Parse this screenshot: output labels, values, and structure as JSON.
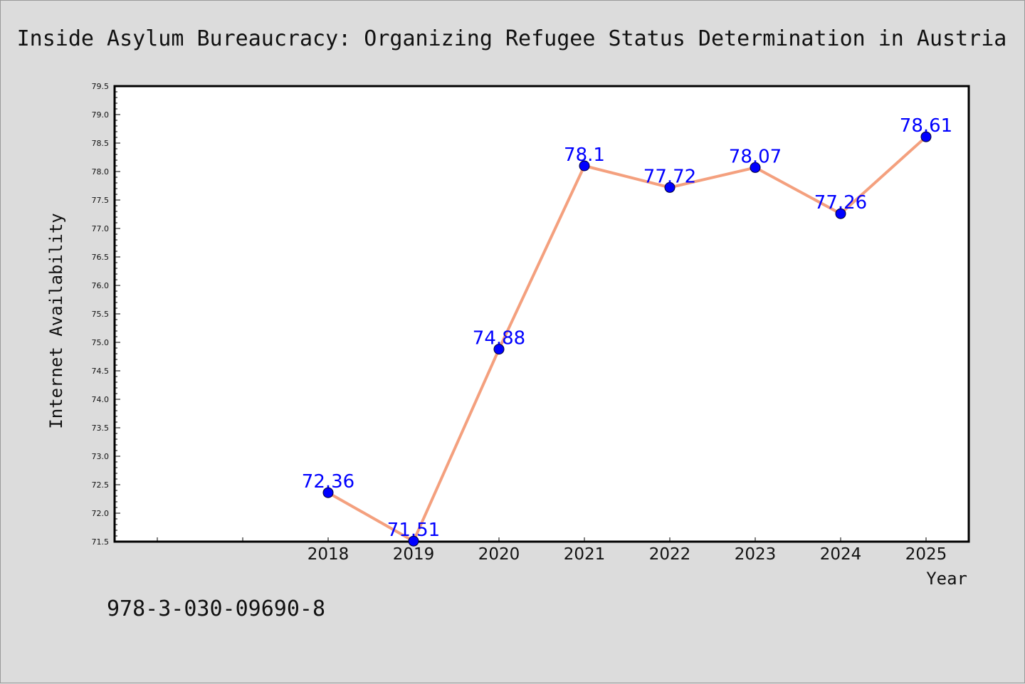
{
  "chart_data": {
    "type": "line",
    "title": "Inside Asylum Bureaucracy: Organizing Refugee Status Determination in Austria",
    "xlabel": "Year",
    "ylabel": "Internet Availability",
    "x": [
      2018,
      2019,
      2020,
      2021,
      2022,
      2023,
      2024,
      2025
    ],
    "categories": [
      "2018",
      "2019",
      "2020",
      "2021",
      "2022",
      "2023",
      "2024",
      "2025"
    ],
    "values": [
      72.36,
      71.51,
      74.88,
      78.1,
      77.72,
      78.07,
      77.26,
      78.61
    ],
    "value_labels": [
      "72.36",
      "71.51",
      "74.88",
      "78.1",
      "77.72",
      "78.07",
      "77.26",
      "78.61"
    ],
    "ylim": [
      71.5,
      79.5
    ],
    "xlim": [
      2015.5,
      2025.5
    ],
    "yticks": [
      "71.5",
      "72.0",
      "72.5",
      "73.0",
      "73.5",
      "74.0",
      "74.5",
      "75.0",
      "75.5",
      "76.0",
      "76.5",
      "77.0",
      "77.5",
      "78.0",
      "78.5",
      "79.0",
      "79.5"
    ],
    "grid": false,
    "line_color": "#f4a07e",
    "marker_color": "#0000ff",
    "label_color": "#0000ff",
    "background": "#dcdcdc",
    "plot_background": "#ffffff"
  },
  "footer": {
    "isbn": "978-3-030-09690-8"
  }
}
